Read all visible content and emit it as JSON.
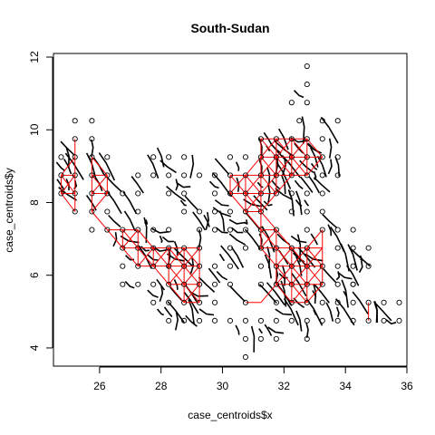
{
  "chart_data": {
    "type": "scatter",
    "title": "South-Sudan",
    "xlabel": "case_centroids$x",
    "ylabel": "case_centroids$y",
    "xlim": [
      24.5,
      36.0
    ],
    "ylim": [
      3.5,
      12.1
    ],
    "xticks": [
      26,
      28,
      30,
      32,
      34,
      36
    ],
    "yticks": [
      4,
      6,
      8,
      10,
      12
    ],
    "grid": false,
    "colors": {
      "points": "#000000",
      "network": "#ff0000",
      "boundaries": "#000000"
    },
    "points": [
      [
        25.2,
        10.25
      ],
      [
        25.75,
        10.25
      ],
      [
        25.2,
        9.75
      ],
      [
        25.75,
        9.75
      ],
      [
        24.75,
        9.25
      ],
      [
        25.2,
        9.25
      ],
      [
        25.75,
        9.25
      ],
      [
        26.25,
        9.25
      ],
      [
        24.75,
        8.75
      ],
      [
        25.2,
        8.75
      ],
      [
        25.75,
        8.75
      ],
      [
        26.25,
        8.75
      ],
      [
        24.75,
        8.25
      ],
      [
        25.2,
        8.25
      ],
      [
        25.75,
        8.25
      ],
      [
        26.25,
        8.25
      ],
      [
        26.75,
        8.25
      ],
      [
        25.75,
        7.75
      ],
      [
        25.2,
        7.75
      ],
      [
        26.25,
        7.75
      ],
      [
        27.25,
        7.75
      ],
      [
        25.75,
        7.25
      ],
      [
        26.25,
        7.25
      ],
      [
        26.75,
        7.25
      ],
      [
        27.25,
        7.25
      ],
      [
        27.75,
        7.25
      ],
      [
        26.75,
        6.75
      ],
      [
        27.25,
        6.75
      ],
      [
        27.75,
        6.75
      ],
      [
        28.25,
        6.75
      ],
      [
        28.75,
        6.75
      ],
      [
        29.25,
        6.75
      ],
      [
        26.75,
        6.25
      ],
      [
        27.25,
        6.25
      ],
      [
        27.75,
        6.25
      ],
      [
        28.25,
        6.25
      ],
      [
        28.75,
        6.25
      ],
      [
        29.25,
        6.25
      ],
      [
        29.75,
        6.25
      ],
      [
        27.75,
        5.75
      ],
      [
        28.25,
        5.75
      ],
      [
        28.75,
        5.75
      ],
      [
        29.25,
        5.75
      ],
      [
        29.75,
        5.75
      ],
      [
        28.25,
        5.25
      ],
      [
        28.75,
        5.25
      ],
      [
        29.25,
        5.25
      ],
      [
        29.75,
        5.25
      ],
      [
        28.75,
        4.75
      ],
      [
        29.25,
        4.75
      ],
      [
        29.75,
        4.75
      ],
      [
        27.75,
        5.25
      ],
      [
        28.25,
        4.75
      ],
      [
        27.25,
        8.75
      ],
      [
        27.75,
        8.75
      ],
      [
        28.25,
        8.75
      ],
      [
        28.75,
        8.75
      ],
      [
        29.25,
        8.75
      ],
      [
        29.75,
        8.75
      ],
      [
        27.75,
        9.25
      ],
      [
        28.25,
        9.25
      ],
      [
        28.75,
        9.25
      ],
      [
        27.25,
        8.25
      ],
      [
        28.25,
        8.25
      ],
      [
        28.75,
        8.25
      ],
      [
        29.75,
        8.25
      ],
      [
        28.75,
        7.75
      ],
      [
        29.25,
        7.75
      ],
      [
        29.75,
        7.75
      ],
      [
        28.25,
        7.25
      ],
      [
        29.25,
        7.25
      ],
      [
        30.25,
        7.25
      ],
      [
        30.25,
        8.25
      ],
      [
        30.75,
        8.75
      ],
      [
        31.25,
        9.75
      ],
      [
        31.75,
        9.75
      ],
      [
        31.25,
        9.25
      ],
      [
        31.75,
        9.25
      ],
      [
        30.75,
        9.25
      ],
      [
        30.25,
        9.25
      ],
      [
        30.25,
        8.75
      ],
      [
        31.25,
        8.75
      ],
      [
        31.75,
        8.75
      ],
      [
        30.25,
        7.75
      ],
      [
        30.75,
        7.75
      ],
      [
        31.25,
        7.75
      ],
      [
        30.75,
        8.25
      ],
      [
        31.25,
        8.25
      ],
      [
        31.75,
        8.25
      ],
      [
        30.75,
        7.25
      ],
      [
        31.25,
        7.25
      ],
      [
        31.75,
        7.25
      ],
      [
        30.75,
        6.75
      ],
      [
        31.25,
        6.75
      ],
      [
        31.75,
        6.75
      ],
      [
        32.25,
        6.75
      ],
      [
        32.75,
        6.75
      ],
      [
        31.25,
        6.25
      ],
      [
        31.75,
        6.25
      ],
      [
        32.25,
        6.25
      ],
      [
        32.75,
        6.25
      ],
      [
        33.25,
        6.25
      ],
      [
        31.25,
        5.75
      ],
      [
        31.75,
        5.75
      ],
      [
        32.25,
        5.75
      ],
      [
        32.75,
        5.75
      ],
      [
        33.25,
        5.75
      ],
      [
        31.75,
        5.25
      ],
      [
        32.25,
        5.25
      ],
      [
        32.75,
        5.25
      ],
      [
        33.25,
        5.25
      ],
      [
        30.75,
        5.25
      ],
      [
        30.25,
        5.75
      ],
      [
        30.25,
        4.75
      ],
      [
        30.75,
        4.75
      ],
      [
        31.25,
        4.75
      ],
      [
        31.75,
        4.75
      ],
      [
        32.25,
        4.75
      ],
      [
        32.75,
        4.75
      ],
      [
        33.25,
        4.75
      ],
      [
        33.75,
        4.75
      ],
      [
        30.75,
        4.25
      ],
      [
        31.25,
        4.25
      ],
      [
        31.75,
        4.25
      ],
      [
        32.75,
        4.25
      ],
      [
        30.75,
        3.75
      ],
      [
        32.25,
        10.75
      ],
      [
        32.75,
        10.75
      ],
      [
        32.75,
        11.75
      ],
      [
        32.75,
        11.25
      ],
      [
        32.5,
        10.25
      ],
      [
        32.25,
        9.75
      ],
      [
        32.75,
        9.75
      ],
      [
        32.25,
        9.25
      ],
      [
        32.75,
        9.25
      ],
      [
        33.25,
        9.25
      ],
      [
        33.75,
        9.25
      ],
      [
        32.25,
        8.75
      ],
      [
        32.75,
        8.75
      ],
      [
        33.25,
        8.75
      ],
      [
        33.75,
        8.75
      ],
      [
        32.25,
        8.25
      ],
      [
        32.75,
        8.25
      ],
      [
        33.25,
        8.25
      ],
      [
        33.25,
        10.25
      ],
      [
        33.75,
        10.25
      ],
      [
        33.25,
        9.75
      ],
      [
        32.25,
        7.75
      ],
      [
        32.75,
        7.75
      ],
      [
        33.25,
        7.75
      ],
      [
        33.75,
        7.25
      ],
      [
        33.25,
        7.25
      ],
      [
        32.75,
        7.25
      ],
      [
        33.75,
        6.75
      ],
      [
        34.25,
        6.75
      ],
      [
        33.75,
        6.25
      ],
      [
        34.25,
        6.25
      ],
      [
        33.75,
        5.75
      ],
      [
        34.25,
        5.75
      ],
      [
        33.75,
        5.25
      ],
      [
        34.25,
        5.25
      ],
      [
        34.75,
        5.25
      ],
      [
        35.25,
        5.25
      ],
      [
        34.75,
        4.75
      ],
      [
        35.25,
        4.75
      ],
      [
        34.25,
        4.75
      ],
      [
        35.75,
        5.25
      ],
      [
        35.75,
        4.75
      ],
      [
        34.75,
        6.75
      ],
      [
        34.25,
        5.75
      ],
      [
        34.75,
        6.25
      ],
      [
        27.25,
        5.75
      ],
      [
        26.75,
        5.75
      ],
      [
        29.75,
        7.25
      ],
      [
        30.25,
        6.25
      ],
      [
        30.25,
        6.75
      ],
      [
        34.25,
        7.25
      ]
    ],
    "red_cells": [
      [
        25.2,
        9.75
      ],
      [
        25.2,
        9.25
      ],
      [
        24.75,
        8.75
      ],
      [
        25.2,
        8.75
      ],
      [
        24.75,
        8.25
      ],
      [
        25.2,
        8.25
      ],
      [
        25.75,
        9.25
      ],
      [
        25.75,
        8.75
      ],
      [
        25.75,
        8.25
      ],
      [
        25.2,
        7.75
      ],
      [
        25.75,
        7.75
      ],
      [
        26.25,
        8.75
      ],
      [
        26.25,
        8.25
      ],
      [
        26.75,
        7.25
      ],
      [
        26.25,
        7.25
      ],
      [
        26.75,
        6.75
      ],
      [
        27.25,
        6.75
      ],
      [
        27.25,
        7.25
      ],
      [
        27.75,
        6.75
      ],
      [
        27.75,
        6.25
      ],
      [
        28.25,
        6.25
      ],
      [
        28.25,
        6.75
      ],
      [
        28.75,
        6.25
      ],
      [
        28.75,
        5.75
      ],
      [
        28.25,
        5.75
      ],
      [
        29.25,
        6.25
      ],
      [
        29.25,
        5.75
      ],
      [
        28.75,
        5.25
      ],
      [
        29.25,
        5.25
      ],
      [
        28.75,
        6.75
      ],
      [
        29.25,
        6.75
      ],
      [
        27.25,
        6.25
      ],
      [
        30.75,
        8.75
      ],
      [
        31.25,
        8.75
      ],
      [
        31.75,
        8.75
      ],
      [
        30.75,
        8.25
      ],
      [
        31.25,
        8.25
      ],
      [
        31.75,
        8.25
      ],
      [
        31.25,
        9.25
      ],
      [
        31.75,
        9.25
      ],
      [
        31.25,
        9.75
      ],
      [
        31.75,
        9.75
      ],
      [
        30.25,
        8.75
      ],
      [
        30.25,
        8.25
      ],
      [
        30.75,
        7.75
      ],
      [
        31.25,
        7.75
      ],
      [
        32.25,
        9.75
      ],
      [
        32.25,
        9.25
      ],
      [
        32.75,
        9.25
      ],
      [
        32.75,
        9.75
      ],
      [
        32.25,
        8.75
      ],
      [
        32.75,
        8.75
      ],
      [
        33.25,
        9.25
      ],
      [
        31.25,
        7.25
      ],
      [
        31.75,
        7.25
      ],
      [
        31.25,
        6.75
      ],
      [
        31.75,
        6.75
      ],
      [
        32.25,
        6.75
      ],
      [
        31.75,
        6.25
      ],
      [
        32.25,
        6.25
      ],
      [
        32.75,
        6.25
      ],
      [
        31.75,
        5.75
      ],
      [
        32.25,
        5.75
      ],
      [
        32.75,
        5.75
      ],
      [
        32.25,
        5.25
      ],
      [
        32.75,
        5.25
      ],
      [
        33.25,
        5.75
      ],
      [
        33.25,
        6.25
      ],
      [
        32.75,
        6.75
      ],
      [
        33.25,
        6.75
      ],
      [
        33.25,
        7.25
      ],
      [
        34.75,
        5.25
      ],
      [
        34.75,
        4.75
      ],
      [
        30.75,
        5.25
      ],
      [
        31.25,
        5.25
      ]
    ]
  }
}
